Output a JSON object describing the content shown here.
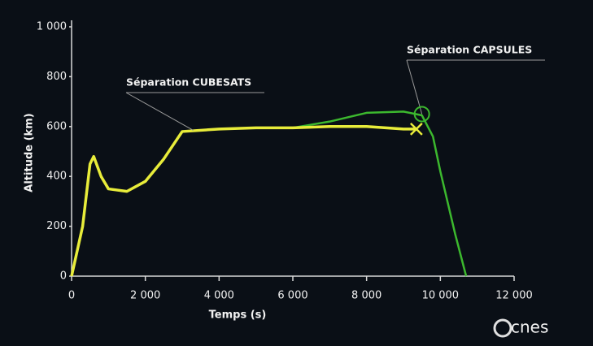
{
  "chart_data": {
    "type": "line",
    "y_label": "Altitude (km)",
    "x_label": "Temps (s)",
    "xlim": [
      0,
      12000
    ],
    "ylim": [
      0,
      1000
    ],
    "xticks": [
      0,
      {
        "value": 2000,
        "label": "2 000"
      },
      {
        "value": 4000,
        "label": "4 000"
      },
      {
        "value": 6000,
        "label": "6 000"
      },
      {
        "value": 8000,
        "label": "8 000"
      },
      {
        "value": 10000,
        "label": "10 000"
      },
      {
        "value": 12000,
        "label": "12 000"
      }
    ],
    "yticks": [
      0,
      200,
      400,
      600,
      800,
      {
        "value": 1000,
        "label": "1 000"
      }
    ],
    "series": [
      {
        "color": "#e8ec3a",
        "x": [
          0,
          300,
          500,
          600,
          800,
          1000,
          1500,
          2000,
          2500,
          3000,
          4000,
          5000,
          6000,
          7000,
          8000,
          9000,
          9350
        ],
        "values": [
          0,
          200,
          450,
          480,
          400,
          350,
          340,
          380,
          470,
          580,
          590,
          595,
          595,
          600,
          600,
          590,
          590
        ]
      },
      {
        "color": "#3cb82e",
        "x": [
          6000,
          7000,
          8000,
          9000,
          9500,
          9800,
          10000,
          10400,
          10700
        ],
        "values": [
          595,
          620,
          655,
          660,
          645,
          560,
          420,
          170,
          0
        ]
      }
    ],
    "annotations": [
      {
        "text": "Séparation CUBESATS",
        "x": 3300,
        "y": 585
      },
      {
        "text": "Séparation CAPSULES",
        "x": 9500,
        "y": 650
      }
    ],
    "logo": "cnes"
  }
}
